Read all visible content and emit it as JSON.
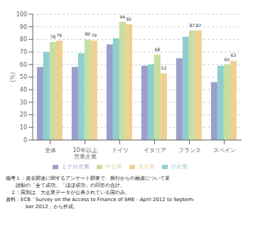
{
  "chart_data": {
    "type": "bar",
    "ylabel": "(%)",
    "categories": [
      "全体",
      "10年以上\n営業企業",
      "ドイツ",
      "イタリア",
      "フランス",
      "スペイン"
    ],
    "series": [
      {
        "name": "ミクロ企業",
        "color": "#9b9fcb",
        "values": [
          58,
          58,
          76,
          59,
          65,
          46
        ]
      },
      {
        "name": "小企業",
        "color": "#8ecece",
        "values": [
          70,
          69,
          81,
          60,
          82,
          59
        ]
      },
      {
        "name": "中企業",
        "color": "#c8dea0",
        "values": [
          78,
          80,
          94,
          68,
          87,
          60
        ],
        "data_labels": true
      },
      {
        "name": "大企業",
        "color": "#f0d090",
        "values": [
          79,
          79,
          92,
          53,
          87,
          63
        ],
        "data_labels": true
      }
    ],
    "ylim": [
      0,
      100
    ],
    "yticks": [
      0,
      10,
      20,
      30,
      40,
      50,
      60,
      70,
      80,
      90,
      100
    ],
    "grid": true,
    "legend": "bottom",
    "annotations": [
      "備考１：資金調達に関するアンケート調査で、銀行からの融資について要",
      "　　請額の「全て成功」「ほぼ成功」の回答の合計。",
      "　２：国別は、大企業データが公表されている国のみ。",
      "資料：ECB「Survey on the Access to Finance of SME - April 2012 to Septem-",
      "　　　　ber 2012」から作成。"
    ]
  }
}
